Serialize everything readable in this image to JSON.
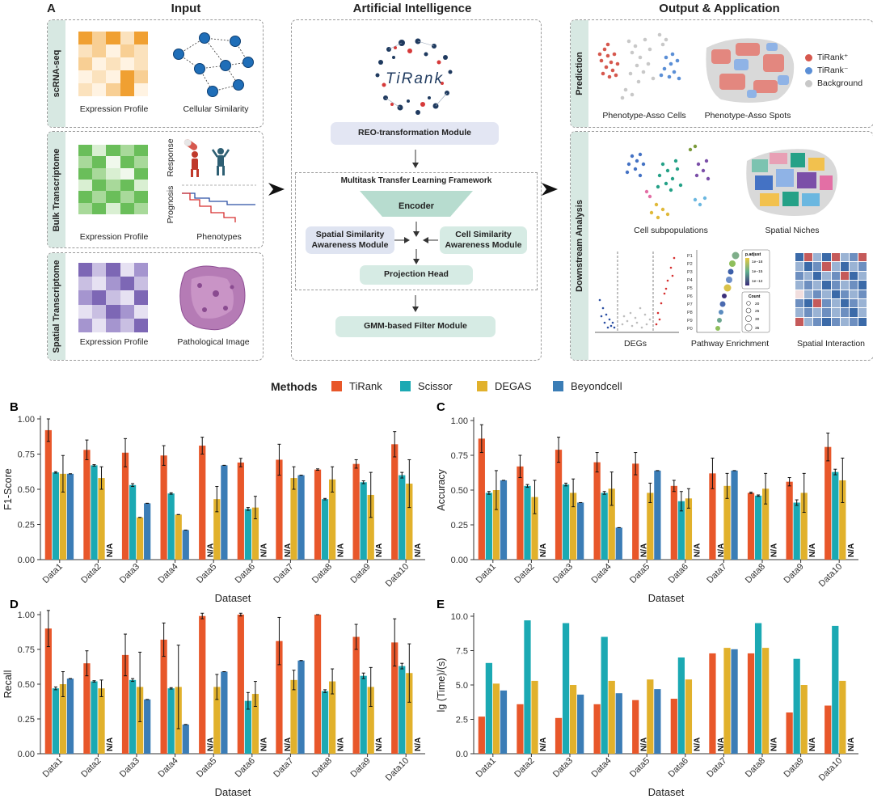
{
  "panel_a": {
    "letter": "A",
    "sections": {
      "input": "Input",
      "ai": "Artificial Intelligence",
      "output": "Output & Application"
    },
    "rows": {
      "scrna": "scRNA-seq",
      "bulk": "Bulk Transcriptome",
      "spatial": "Spatial Transcriptome"
    },
    "captions": {
      "scrna_expr": "Expression Profile",
      "scrna_sim": "Cellular Similarity",
      "bulk_expr": "Expression Profile",
      "bulk_pheno": "Phenotypes",
      "response": "Response",
      "prognosis": "Prognosis",
      "spatial_expr": "Expression Profile",
      "spatial_img": "Pathological Image"
    },
    "logo_text": "TiRank",
    "modules": {
      "reo": "REO-transformation Module",
      "framework": "Multitask Transfer Learning Framework",
      "encoder": "Encoder",
      "spatial_sim": "Spatial Similarity Awareness Module",
      "cell_sim": "Cell Similarity Awareness Module",
      "projection": "Projection Head",
      "gmm": "GMM-based Filter Module"
    },
    "output_rows": {
      "prediction": "Prediction",
      "downstream": "Downstream Analysis"
    },
    "output_captions": {
      "cells": "Phenotype-Asso Cells",
      "spots": "Phenotype-Asso Spots",
      "subpop": "Cell subpopulations",
      "niches": "Spatial Niches",
      "degs": "DEGs",
      "pathway": "Pathway Enrichment",
      "interaction": "Spatial Interaction"
    },
    "pred_legend": {
      "pos": "TiRank⁺",
      "neg": "TiRank⁻",
      "bg": "Background"
    },
    "pathway_mini": {
      "terms": [
        "P1",
        "P2",
        "P3",
        "P4",
        "P5",
        "P6",
        "P7",
        "P8",
        "P9",
        "P0"
      ],
      "padj_title": "p.adjust",
      "padj_ticks": [
        "1e−18",
        "1e−15",
        "1e−12"
      ],
      "count_title": "Count",
      "count_ticks": [
        "20",
        "25",
        "30",
        "35"
      ]
    },
    "colors": {
      "tirank_pos": "#d6584e",
      "tirank_neg": "#5b8fd6",
      "background": "#c8c8c8",
      "module_blue": "#e3e6f3",
      "module_green": "#d6ebe4",
      "orange_heat": "#f0a032",
      "green_heat": "#6abe5a",
      "purple_heat": "#7d67b5",
      "net_blue": "#1f6eb8"
    }
  },
  "legend": {
    "title": "Methods",
    "items": [
      {
        "name": "TiRank",
        "color": "#e8572a"
      },
      {
        "name": "Scissor",
        "color": "#1ba9b3"
      },
      {
        "name": "DEGAS",
        "color": "#e1b12c"
      },
      {
        "name": "Beyondcell",
        "color": "#3b7db6"
      }
    ]
  },
  "chart_data": [
    {
      "letter": "B",
      "type": "bar",
      "xlabel": "Dataset",
      "ylabel": "F1-Score",
      "ylim": [
        0,
        1.0
      ],
      "yticks": [
        "0.00",
        "0.25",
        "0.50",
        "0.75",
        "1.00"
      ],
      "na_label": "N/A",
      "categories": [
        "Data1",
        "Data2",
        "Data3",
        "Data4",
        "Data5",
        "Data6",
        "Data7",
        "Data8",
        "Data9",
        "Data10"
      ],
      "series": [
        {
          "name": "TiRank",
          "values": [
            0.92,
            0.78,
            0.76,
            0.74,
            0.81,
            0.69,
            0.71,
            0.64,
            0.68,
            0.82
          ],
          "err": [
            0.08,
            0.07,
            0.1,
            0.07,
            0.06,
            0.03,
            0.11,
            0.005,
            0.03,
            0.09
          ]
        },
        {
          "name": "Scissor",
          "values": [
            0.62,
            0.67,
            0.53,
            0.47,
            null,
            0.36,
            null,
            0.43,
            0.55,
            0.6
          ],
          "err": [
            0.005,
            0.005,
            0.01,
            0.005,
            null,
            0.01,
            null,
            0.005,
            0.01,
            0.02
          ]
        },
        {
          "name": "DEGAS",
          "values": [
            0.61,
            0.58,
            0.3,
            0.32,
            0.43,
            0.37,
            0.58,
            0.57,
            0.46,
            0.54
          ],
          "err": [
            0.13,
            0.08,
            0,
            0,
            0.09,
            0.08,
            0.08,
            0.09,
            0.16,
            0.17
          ]
        },
        {
          "name": "Beyondcell",
          "values": [
            0.61,
            null,
            0.4,
            0.21,
            0.67,
            null,
            0.6,
            null,
            null,
            null
          ],
          "err": [
            0,
            null,
            0,
            0,
            0,
            null,
            0,
            null,
            null,
            null
          ]
        }
      ]
    },
    {
      "letter": "C",
      "type": "bar",
      "xlabel": "Dataset",
      "ylabel": "Accuracy",
      "ylim": [
        0,
        1.0
      ],
      "yticks": [
        "0.00",
        "0.25",
        "0.50",
        "0.75",
        "1.00"
      ],
      "na_label": "N/A",
      "categories": [
        "Data1",
        "Data2",
        "Data3",
        "Data4",
        "Data5",
        "Data6",
        "Data7",
        "Data8",
        "Data9",
        "Data10"
      ],
      "series": [
        {
          "name": "TiRank",
          "values": [
            0.87,
            0.67,
            0.79,
            0.7,
            0.69,
            0.53,
            0.62,
            0.48,
            0.56,
            0.81
          ],
          "err": [
            0.1,
            0.08,
            0.09,
            0.07,
            0.08,
            0.04,
            0.11,
            0.005,
            0.03,
            0.1
          ]
        },
        {
          "name": "Scissor",
          "values": [
            0.48,
            0.53,
            0.54,
            0.48,
            null,
            0.42,
            null,
            0.46,
            0.41,
            0.63
          ],
          "err": [
            0.01,
            0.01,
            0.01,
            0.01,
            null,
            0.07,
            null,
            0.005,
            0.02,
            0.02
          ]
        },
        {
          "name": "DEGAS",
          "values": [
            0.5,
            0.45,
            0.48,
            0.51,
            0.48,
            0.44,
            0.53,
            0.51,
            0.48,
            0.57
          ],
          "err": [
            0.14,
            0.12,
            0.1,
            0.12,
            0.07,
            0.07,
            0.09,
            0.11,
            0.14,
            0.16
          ]
        },
        {
          "name": "Beyondcell",
          "values": [
            0.57,
            null,
            0.41,
            0.23,
            0.64,
            null,
            0.64,
            null,
            null,
            null
          ],
          "err": [
            0,
            null,
            0,
            0,
            0,
            null,
            0,
            null,
            null,
            null
          ]
        }
      ]
    },
    {
      "letter": "D",
      "type": "bar",
      "xlabel": "Dataset",
      "ylabel": "Recall",
      "ylim": [
        0,
        1.0
      ],
      "yticks": [
        "0.00",
        "0.25",
        "0.50",
        "0.75",
        "1.00"
      ],
      "na_label": "N/A",
      "categories": [
        "Data1",
        "Data2",
        "Data3",
        "Data4",
        "Data5",
        "Data6",
        "Data7",
        "Data8",
        "Data9",
        "Data10"
      ],
      "series": [
        {
          "name": "TiRank",
          "values": [
            0.9,
            0.65,
            0.71,
            0.82,
            0.99,
            1.0,
            0.81,
            1.0,
            0.84,
            0.8
          ],
          "err": [
            0.13,
            0.09,
            0.15,
            0.12,
            0.02,
            0.01,
            0.17,
            0,
            0.09,
            0.17
          ]
        },
        {
          "name": "Scissor",
          "values": [
            0.47,
            0.52,
            0.53,
            0.47,
            null,
            0.38,
            null,
            0.45,
            0.56,
            0.63
          ],
          "err": [
            0.01,
            0.005,
            0.01,
            0.005,
            null,
            0.06,
            null,
            0.01,
            0.02,
            0.02
          ]
        },
        {
          "name": "DEGAS",
          "values": [
            0.5,
            0.47,
            0.48,
            0.48,
            0.48,
            0.43,
            0.53,
            0.52,
            0.48,
            0.58
          ],
          "err": [
            0.09,
            0.06,
            0.25,
            0.3,
            0.09,
            0.09,
            0.07,
            0.09,
            0.14,
            0.21
          ]
        },
        {
          "name": "Beyondcell",
          "values": [
            0.54,
            null,
            0.39,
            0.21,
            0.59,
            null,
            0.67,
            null,
            null,
            null
          ],
          "err": [
            0,
            null,
            0,
            0,
            0,
            null,
            0,
            null,
            null,
            null
          ]
        }
      ]
    },
    {
      "letter": "E",
      "type": "bar",
      "xlabel": "Dataset",
      "ylabel": "lg (Time)/(s)",
      "ylim": [
        0,
        10.0
      ],
      "yticks": [
        "0.0",
        "2.5",
        "5.0",
        "7.5",
        "10.0"
      ],
      "na_label": "N/A",
      "categories": [
        "Data1",
        "Data2",
        "Data3",
        "Data4",
        "Data5",
        "Data6",
        "Data7",
        "Data8",
        "Data9",
        "Data10"
      ],
      "series": [
        {
          "name": "TiRank",
          "values": [
            2.7,
            3.6,
            2.6,
            3.6,
            3.9,
            4.0,
            7.3,
            7.3,
            3.0,
            3.5
          ],
          "err": []
        },
        {
          "name": "Scissor",
          "values": [
            6.6,
            9.7,
            9.5,
            8.5,
            null,
            7.0,
            null,
            9.5,
            6.9,
            9.3
          ],
          "err": []
        },
        {
          "name": "DEGAS",
          "values": [
            5.1,
            5.3,
            5.0,
            5.3,
            5.4,
            5.4,
            7.7,
            7.7,
            5.0,
            5.3
          ],
          "err": []
        },
        {
          "name": "Beyondcell",
          "values": [
            4.6,
            null,
            4.3,
            4.4,
            4.7,
            null,
            7.6,
            null,
            null,
            null
          ],
          "err": []
        }
      ]
    }
  ]
}
